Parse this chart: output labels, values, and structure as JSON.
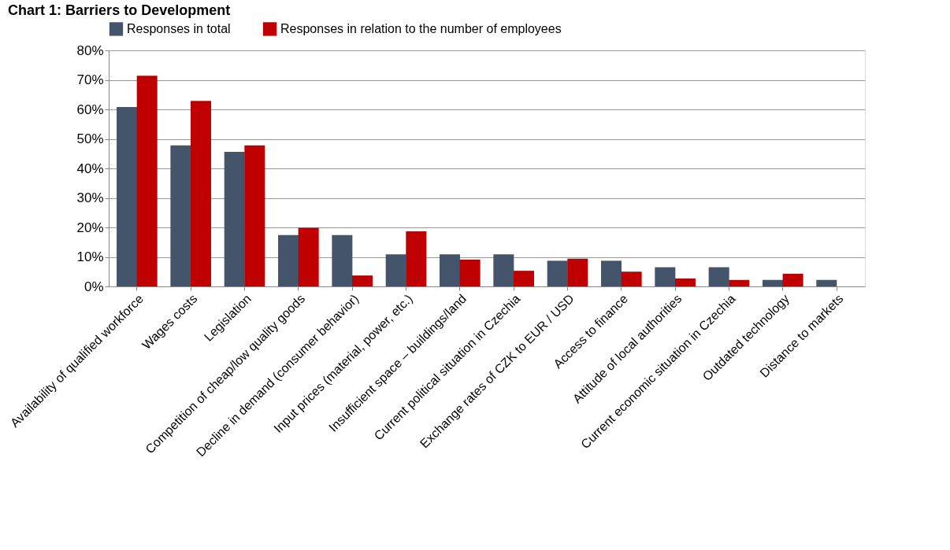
{
  "chart_data": {
    "type": "bar",
    "title": "Chart 1: Barriers to Development",
    "categories": [
      "Availability of qualified workforce",
      "Wages costs",
      "Legislation",
      "Competition of cheap/low quality goods",
      "Decline in demand (consumer behavior)",
      "Input prices (material, power, etc.)",
      "Insufficient space – buildings/land",
      "Current political situation in Czechia",
      "Exchange rates of CZK to EUR / USD",
      "Access to finance",
      "Attitude of local authorities",
      "Current economic situation in Czechia",
      "Outdated technology",
      "Distance to markets"
    ],
    "series": [
      {
        "name": "Responses in total",
        "color": "#44546a",
        "values": [
          60.8,
          47.8,
          45.6,
          17.4,
          17.4,
          10.9,
          10.9,
          10.9,
          8.7,
          8.7,
          6.5,
          6.5,
          2.2,
          2.2
        ]
      },
      {
        "name": "Responses in relation to the number of employees",
        "color": "#c00000",
        "values": [
          71.4,
          62.9,
          47.8,
          19.9,
          3.7,
          18.7,
          9.1,
          5.3,
          9.4,
          5.0,
          2.7,
          2.2,
          4.3,
          0
        ]
      }
    ],
    "ylim": [
      0,
      80
    ],
    "yticks": [
      {
        "value": 0,
        "label": "0%"
      },
      {
        "value": 10,
        "label": "10%"
      },
      {
        "value": 20,
        "label": "20%"
      },
      {
        "value": 30,
        "label": "30%"
      },
      {
        "value": 40,
        "label": "40%"
      },
      {
        "value": 50,
        "label": "50%"
      },
      {
        "value": 60,
        "label": "60%"
      },
      {
        "value": 70,
        "label": "70%"
      },
      {
        "value": 80,
        "label": "80%"
      }
    ],
    "grid": "y",
    "legend": "top"
  }
}
